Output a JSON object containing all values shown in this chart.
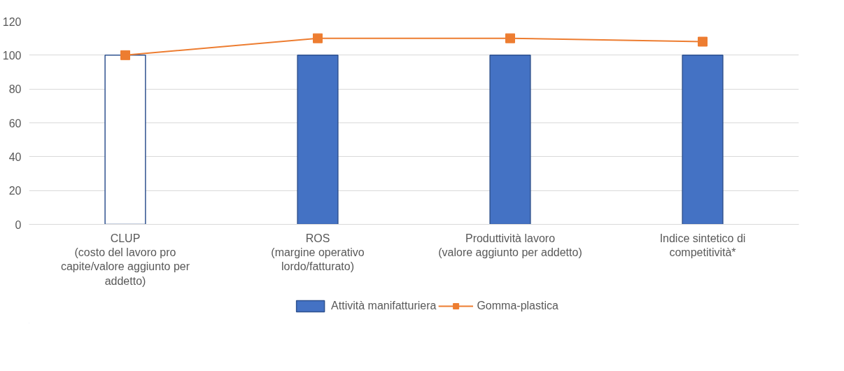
{
  "chart_data": {
    "type": "bar",
    "categories": [
      "CLUP\n(costo del lavoro pro\ncapite/valore aggiunto per\naddetto)",
      "ROS\n(margine operativo\nlordo/fatturato)",
      "Produttività lavoro\n(valore aggiunto per addetto)",
      "Indice sintetico di\ncompetitività*"
    ],
    "series": [
      {
        "name": "Attività manifatturiera",
        "color": "#2f528f",
        "colors": [
          "#ffffff",
          "#4472c4",
          "#4472c4",
          "#4472c4"
        ],
        "values": [
          100,
          100,
          100,
          100
        ]
      },
      {
        "name": "Gomma-plastica",
        "type": "line",
        "color": "#ed7d31",
        "marker": "square",
        "values": [
          100,
          110,
          110,
          108
        ]
      }
    ],
    "ylim": [
      0,
      120
    ],
    "yticks": [
      0,
      20,
      40,
      60,
      80,
      100,
      120
    ],
    "grid": "y",
    "legend": "bottom"
  }
}
